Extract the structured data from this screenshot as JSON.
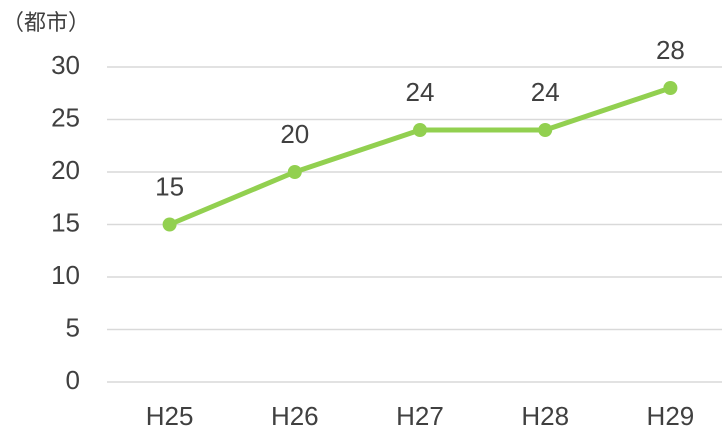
{
  "chart_data": {
    "type": "line",
    "y_label": "（都市）",
    "categories": [
      "H25",
      "H26",
      "H27",
      "H28",
      "H29"
    ],
    "values": [
      15,
      20,
      24,
      24,
      28
    ],
    "color": "#92d050",
    "ylim": [
      0,
      30
    ],
    "yticks": [
      0,
      5,
      10,
      15,
      20,
      25,
      30
    ],
    "grid": true,
    "data_labels": true
  }
}
